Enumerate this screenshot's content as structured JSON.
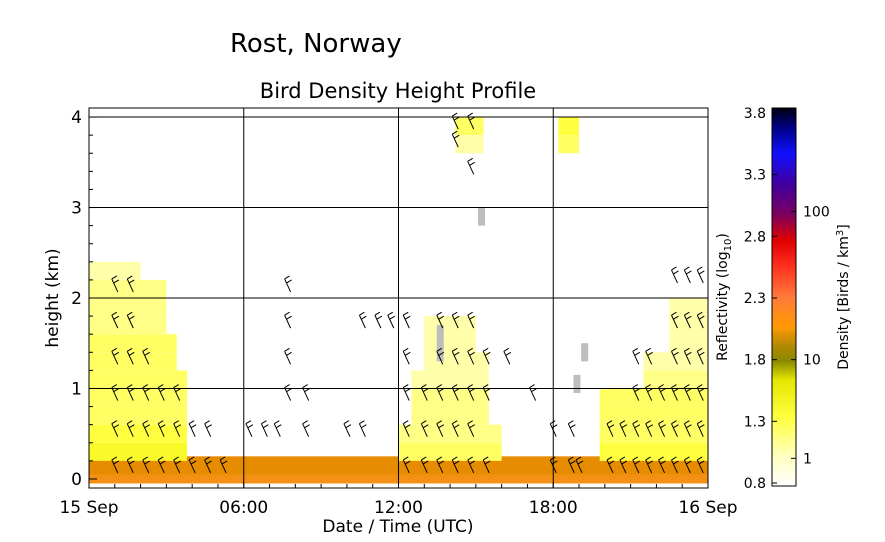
{
  "chart_data": {
    "type": "heatmap",
    "site_title": "Rost, Norway",
    "title": "Bird Density Height Profile",
    "xlabel": "Date / Time (UTC)",
    "ylabel": "height (km)",
    "x_ticks": [
      "15 Sep",
      "06:00",
      "12:00",
      "18:00",
      "16 Sep"
    ],
    "x_tick_hours": [
      0,
      6,
      12,
      18,
      24
    ],
    "y_ticks": [
      "0",
      "1",
      "2",
      "3",
      "4"
    ],
    "y_tick_values": [
      0,
      1,
      2,
      3,
      4
    ],
    "xlim_hours": [
      0,
      24
    ],
    "ylim_km": [
      -0.1,
      4.1
    ],
    "grid": true,
    "colorbar": {
      "reflectivity_label": "Reflectivity (log10)",
      "reflectivity_ticks": [
        "0.8",
        "1.3",
        "1.8",
        "2.3",
        "2.8",
        "3.3",
        "3.8"
      ],
      "reflectivity_values": [
        0.8,
        1.3,
        1.8,
        2.3,
        2.8,
        3.3,
        3.8
      ],
      "density_label": "Density [Birds / km3]",
      "density_ticks": [
        "1",
        "10",
        "100"
      ],
      "density_tick_reflectivity": [
        1.0,
        1.8,
        3.0
      ]
    },
    "density_bands": [
      {
        "height_km": 0.05,
        "from_h": 0,
        "to_h": 24,
        "level": 1.95
      },
      {
        "height_km": 0.15,
        "from_h": 0,
        "to_h": 24,
        "level": 1.9
      },
      {
        "height_km": 0.3,
        "from_h": 0,
        "to_h": 3.8,
        "level": 1.2
      },
      {
        "height_km": 0.5,
        "from_h": 0,
        "to_h": 3.8,
        "level": 1.15
      },
      {
        "height_km": 0.7,
        "from_h": 0,
        "to_h": 3.8,
        "level": 1.1
      },
      {
        "height_km": 0.9,
        "from_h": 0,
        "to_h": 3.8,
        "level": 1.1
      },
      {
        "height_km": 1.1,
        "from_h": 0,
        "to_h": 3.8,
        "level": 1.1
      },
      {
        "height_km": 1.3,
        "from_h": 0,
        "to_h": 3.4,
        "level": 1.1
      },
      {
        "height_km": 1.5,
        "from_h": 0,
        "to_h": 3.4,
        "level": 1.1
      },
      {
        "height_km": 1.7,
        "from_h": 0,
        "to_h": 3.0,
        "level": 1.05
      },
      {
        "height_km": 1.9,
        "from_h": 0,
        "to_h": 3.0,
        "level": 1.05
      },
      {
        "height_km": 2.1,
        "from_h": 0,
        "to_h": 3.0,
        "level": 1.05
      },
      {
        "height_km": 2.3,
        "from_h": 0,
        "to_h": 2.0,
        "level": 1.0
      },
      {
        "height_km": 0.3,
        "from_h": 12.0,
        "to_h": 16.0,
        "level": 1.1
      },
      {
        "height_km": 0.5,
        "from_h": 12.0,
        "to_h": 16.0,
        "level": 1.05
      },
      {
        "height_km": 0.7,
        "from_h": 12.5,
        "to_h": 15.5,
        "level": 1.05
      },
      {
        "height_km": 0.9,
        "from_h": 12.5,
        "to_h": 15.5,
        "level": 1.05
      },
      {
        "height_km": 1.1,
        "from_h": 12.5,
        "to_h": 15.5,
        "level": 1.0
      },
      {
        "height_km": 1.3,
        "from_h": 13.0,
        "to_h": 15.5,
        "level": 1.0
      },
      {
        "height_km": 1.5,
        "from_h": 13.0,
        "to_h": 15.0,
        "level": 1.0
      },
      {
        "height_km": 1.7,
        "from_h": 13.0,
        "to_h": 15.0,
        "level": 1.0
      },
      {
        "height_km": 0.3,
        "from_h": 19.8,
        "to_h": 24,
        "level": 1.15
      },
      {
        "height_km": 0.5,
        "from_h": 19.8,
        "to_h": 24,
        "level": 1.1
      },
      {
        "height_km": 0.7,
        "from_h": 19.8,
        "to_h": 24,
        "level": 1.1
      },
      {
        "height_km": 0.9,
        "from_h": 19.8,
        "to_h": 24,
        "level": 1.1
      },
      {
        "height_km": 1.1,
        "from_h": 21.5,
        "to_h": 24,
        "level": 1.05
      },
      {
        "height_km": 1.3,
        "from_h": 21.5,
        "to_h": 24,
        "level": 1.0
      },
      {
        "height_km": 1.5,
        "from_h": 22.5,
        "to_h": 24,
        "level": 1.0
      },
      {
        "height_km": 1.7,
        "from_h": 22.5,
        "to_h": 24,
        "level": 1.0
      },
      {
        "height_km": 1.9,
        "from_h": 22.5,
        "to_h": 24,
        "level": 1.0
      },
      {
        "height_km": 3.9,
        "from_h": 14.2,
        "to_h": 15.3,
        "level": 1.1
      },
      {
        "height_km": 3.7,
        "from_h": 14.2,
        "to_h": 15.3,
        "level": 1.0
      },
      {
        "height_km": 3.9,
        "from_h": 18.2,
        "to_h": 19.0,
        "level": 1.15
      },
      {
        "height_km": 3.7,
        "from_h": 18.2,
        "to_h": 19.0,
        "level": 1.1
      }
    ],
    "gray_cells": [
      {
        "height_km": 2.9,
        "hour": 15.2
      },
      {
        "height_km": 1.6,
        "hour": 13.6
      },
      {
        "height_km": 1.4,
        "hour": 13.6
      },
      {
        "height_km": 1.4,
        "hour": 19.2
      },
      {
        "height_km": 1.05,
        "hour": 18.9
      }
    ],
    "wind_barbs": [
      {
        "hour": 1.0,
        "heights_km": [
          0.1,
          0.5,
          0.9,
          1.3,
          1.7,
          2.1
        ]
      },
      {
        "hour": 1.6,
        "heights_km": [
          0.1,
          0.5,
          0.9,
          1.3,
          1.7,
          2.1
        ]
      },
      {
        "hour": 2.2,
        "heights_km": [
          0.1,
          0.5,
          0.9,
          1.3
        ]
      },
      {
        "hour": 2.8,
        "heights_km": [
          0.1,
          0.5,
          0.9
        ]
      },
      {
        "hour": 3.4,
        "heights_km": [
          0.1,
          0.5,
          0.9
        ]
      },
      {
        "hour": 4.0,
        "heights_km": [
          0.1,
          0.5
        ]
      },
      {
        "hour": 4.6,
        "heights_km": [
          0.1,
          0.5
        ]
      },
      {
        "hour": 5.2,
        "heights_km": [
          0.1
        ]
      },
      {
        "hour": 6.2,
        "heights_km": [
          0.5
        ]
      },
      {
        "hour": 6.8,
        "heights_km": [
          0.5
        ]
      },
      {
        "hour": 7.3,
        "heights_km": [
          0.5
        ]
      },
      {
        "hour": 7.7,
        "heights_km": [
          0.9,
          1.3,
          1.7,
          2.1
        ]
      },
      {
        "hour": 8.4,
        "heights_km": [
          0.5,
          0.9
        ]
      },
      {
        "hour": 10.0,
        "heights_km": [
          0.5
        ]
      },
      {
        "hour": 10.6,
        "heights_km": [
          0.5,
          1.7
        ]
      },
      {
        "hour": 11.2,
        "heights_km": [
          1.7
        ]
      },
      {
        "hour": 11.7,
        "heights_km": [
          1.7
        ]
      },
      {
        "hour": 12.3,
        "heights_km": [
          0.1,
          0.5,
          0.9,
          1.3,
          1.7
        ]
      },
      {
        "hour": 13.0,
        "heights_km": [
          0.1,
          0.5,
          0.9
        ]
      },
      {
        "hour": 13.6,
        "heights_km": [
          0.1,
          0.5,
          0.9,
          1.3,
          1.7
        ]
      },
      {
        "hour": 14.2,
        "heights_km": [
          0.1,
          0.5,
          0.9,
          1.3,
          1.7,
          3.7,
          3.9
        ]
      },
      {
        "hour": 14.8,
        "heights_km": [
          0.1,
          0.5,
          0.9,
          1.3,
          1.7,
          3.4,
          3.9
        ]
      },
      {
        "hour": 15.4,
        "heights_km": [
          0.1,
          0.9,
          1.3
        ]
      },
      {
        "hour": 16.2,
        "heights_km": [
          1.3
        ]
      },
      {
        "hour": 17.2,
        "heights_km": [
          0.9
        ]
      },
      {
        "hour": 18.0,
        "heights_km": [
          0.1,
          0.5
        ]
      },
      {
        "hour": 18.7,
        "heights_km": [
          0.1,
          0.5
        ]
      },
      {
        "hour": 19.0,
        "heights_km": [
          0.1
        ]
      },
      {
        "hour": 20.2,
        "heights_km": [
          0.1,
          0.5
        ]
      },
      {
        "hour": 20.7,
        "heights_km": [
          0.1,
          0.5
        ]
      },
      {
        "hour": 21.2,
        "heights_km": [
          0.1,
          0.5,
          0.9,
          1.3
        ]
      },
      {
        "hour": 21.7,
        "heights_km": [
          0.1,
          0.5,
          0.9,
          1.3
        ]
      },
      {
        "hour": 22.2,
        "heights_km": [
          0.1,
          0.5,
          0.9
        ]
      },
      {
        "hour": 22.7,
        "heights_km": [
          0.1,
          0.5,
          0.9,
          1.3,
          1.7,
          2.2
        ]
      },
      {
        "hour": 23.2,
        "heights_km": [
          0.1,
          0.5,
          0.9,
          1.3,
          1.7,
          2.2
        ]
      },
      {
        "hour": 23.7,
        "heights_km": [
          0.1,
          0.5,
          0.9,
          1.3,
          1.7,
          2.2
        ]
      }
    ]
  }
}
